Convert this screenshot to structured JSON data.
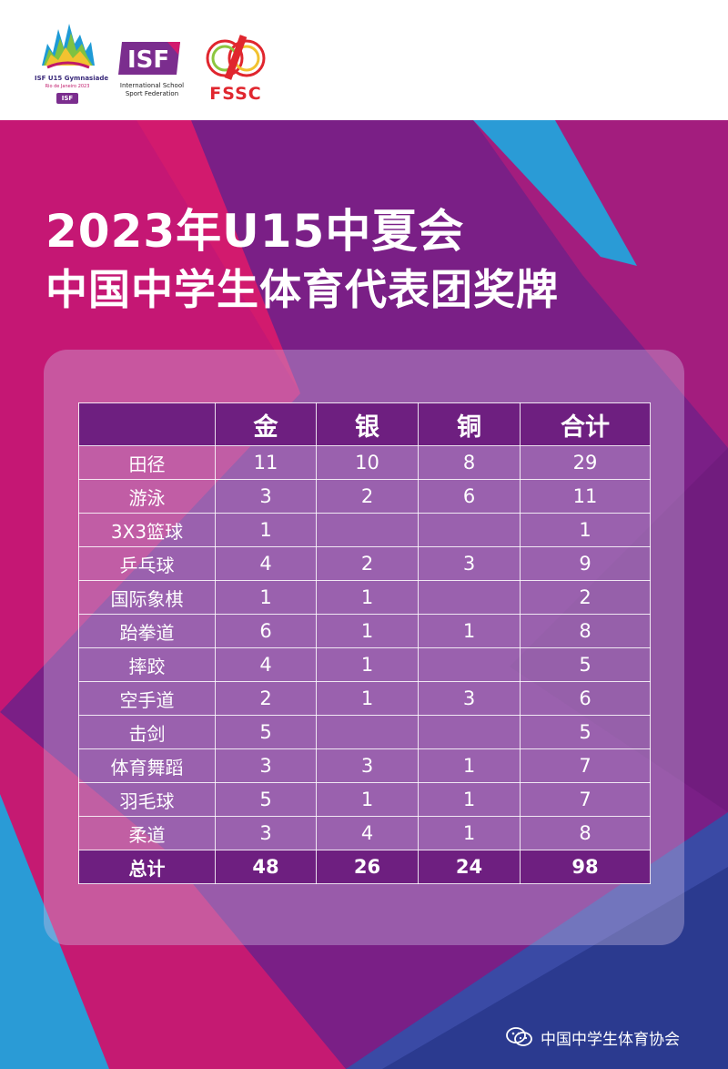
{
  "header": {
    "gymnasiade_logo": {
      "line1": "ISF U15 Gymnasiade",
      "line2": "Rio de Janeiro 2023",
      "badge": "ISF"
    },
    "isf_logo": {
      "mark": "ISF",
      "caption_line1": "International School",
      "caption_line2": "Sport Federation"
    },
    "fssc_logo": {
      "mark": "FSSC"
    }
  },
  "title": {
    "line1": "2023年U15中夏会",
    "line2": "中国中学生体育代表团奖牌"
  },
  "table": {
    "headers": [
      "",
      "金",
      "银",
      "铜",
      "合计"
    ],
    "rows": [
      {
        "sport": "田径",
        "gold": "11",
        "silver": "10",
        "bronze": "8",
        "total": "29"
      },
      {
        "sport": "游泳",
        "gold": "3",
        "silver": "2",
        "bronze": "6",
        "total": "11"
      },
      {
        "sport": "3X3篮球",
        "gold": "1",
        "silver": "",
        "bronze": "",
        "total": "1"
      },
      {
        "sport": "乒乓球",
        "gold": "4",
        "silver": "2",
        "bronze": "3",
        "total": "9"
      },
      {
        "sport": "国际象棋",
        "gold": "1",
        "silver": "1",
        "bronze": "",
        "total": "2"
      },
      {
        "sport": "跆拳道",
        "gold": "6",
        "silver": "1",
        "bronze": "1",
        "total": "8"
      },
      {
        "sport": "摔跤",
        "gold": "4",
        "silver": "1",
        "bronze": "",
        "total": "5"
      },
      {
        "sport": "空手道",
        "gold": "2",
        "silver": "1",
        "bronze": "3",
        "total": "6"
      },
      {
        "sport": "击剑",
        "gold": "5",
        "silver": "",
        "bronze": "",
        "total": "5"
      },
      {
        "sport": "体育舞蹈",
        "gold": "3",
        "silver": "3",
        "bronze": "1",
        "total": "7"
      },
      {
        "sport": "羽毛球",
        "gold": "5",
        "silver": "1",
        "bronze": "1",
        "total": "7"
      },
      {
        "sport": "柔道",
        "gold": "3",
        "silver": "4",
        "bronze": "1",
        "total": "8"
      }
    ],
    "total_row": {
      "sport": "总计",
      "gold": "48",
      "silver": "26",
      "bronze": "24",
      "total": "98"
    }
  },
  "footer": {
    "icon": "wechat-icon",
    "text": "中国中学生体育协会"
  },
  "colors": {
    "purple": "#7a1f86",
    "magenta": "#d21a6e",
    "blue": "#2a9bd6",
    "navy": "#2b3a8f",
    "header_cell": "#6e1f80"
  }
}
